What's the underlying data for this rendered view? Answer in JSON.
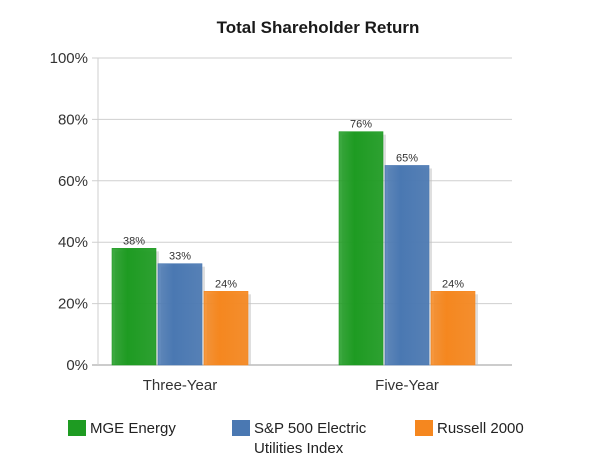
{
  "chart_data": {
    "type": "bar",
    "title": "Total Shareholder Return",
    "xlabel": "",
    "ylabel": "",
    "categories": [
      "Three-Year",
      "Five-Year"
    ],
    "series": [
      {
        "name": "MGE Energy",
        "name_lines": [
          "MGE Energy"
        ],
        "values": [
          38,
          76
        ],
        "data_labels": [
          "38%",
          "76%"
        ],
        "color": "#1e9b22"
      },
      {
        "name": "S&P 500 Electric Utilities Index",
        "name_lines": [
          "S&P 500 Electric",
          "Utilities Index"
        ],
        "values": [
          33,
          65
        ],
        "data_labels": [
          "33%",
          "65%"
        ],
        "color": "#4a78b2"
      },
      {
        "name": "Russell 2000",
        "name_lines": [
          "Russell 2000"
        ],
        "values": [
          24,
          24
        ],
        "data_labels": [
          "24%",
          "24%"
        ],
        "color": "#f5871f"
      }
    ],
    "ylim": [
      0,
      100
    ],
    "yticks": [
      0,
      20,
      40,
      60,
      80,
      100
    ],
    "ytick_labels": [
      "0%",
      "20%",
      "40%",
      "60%",
      "80%",
      "100%"
    ],
    "grid": true,
    "legend_position": "bottom"
  }
}
